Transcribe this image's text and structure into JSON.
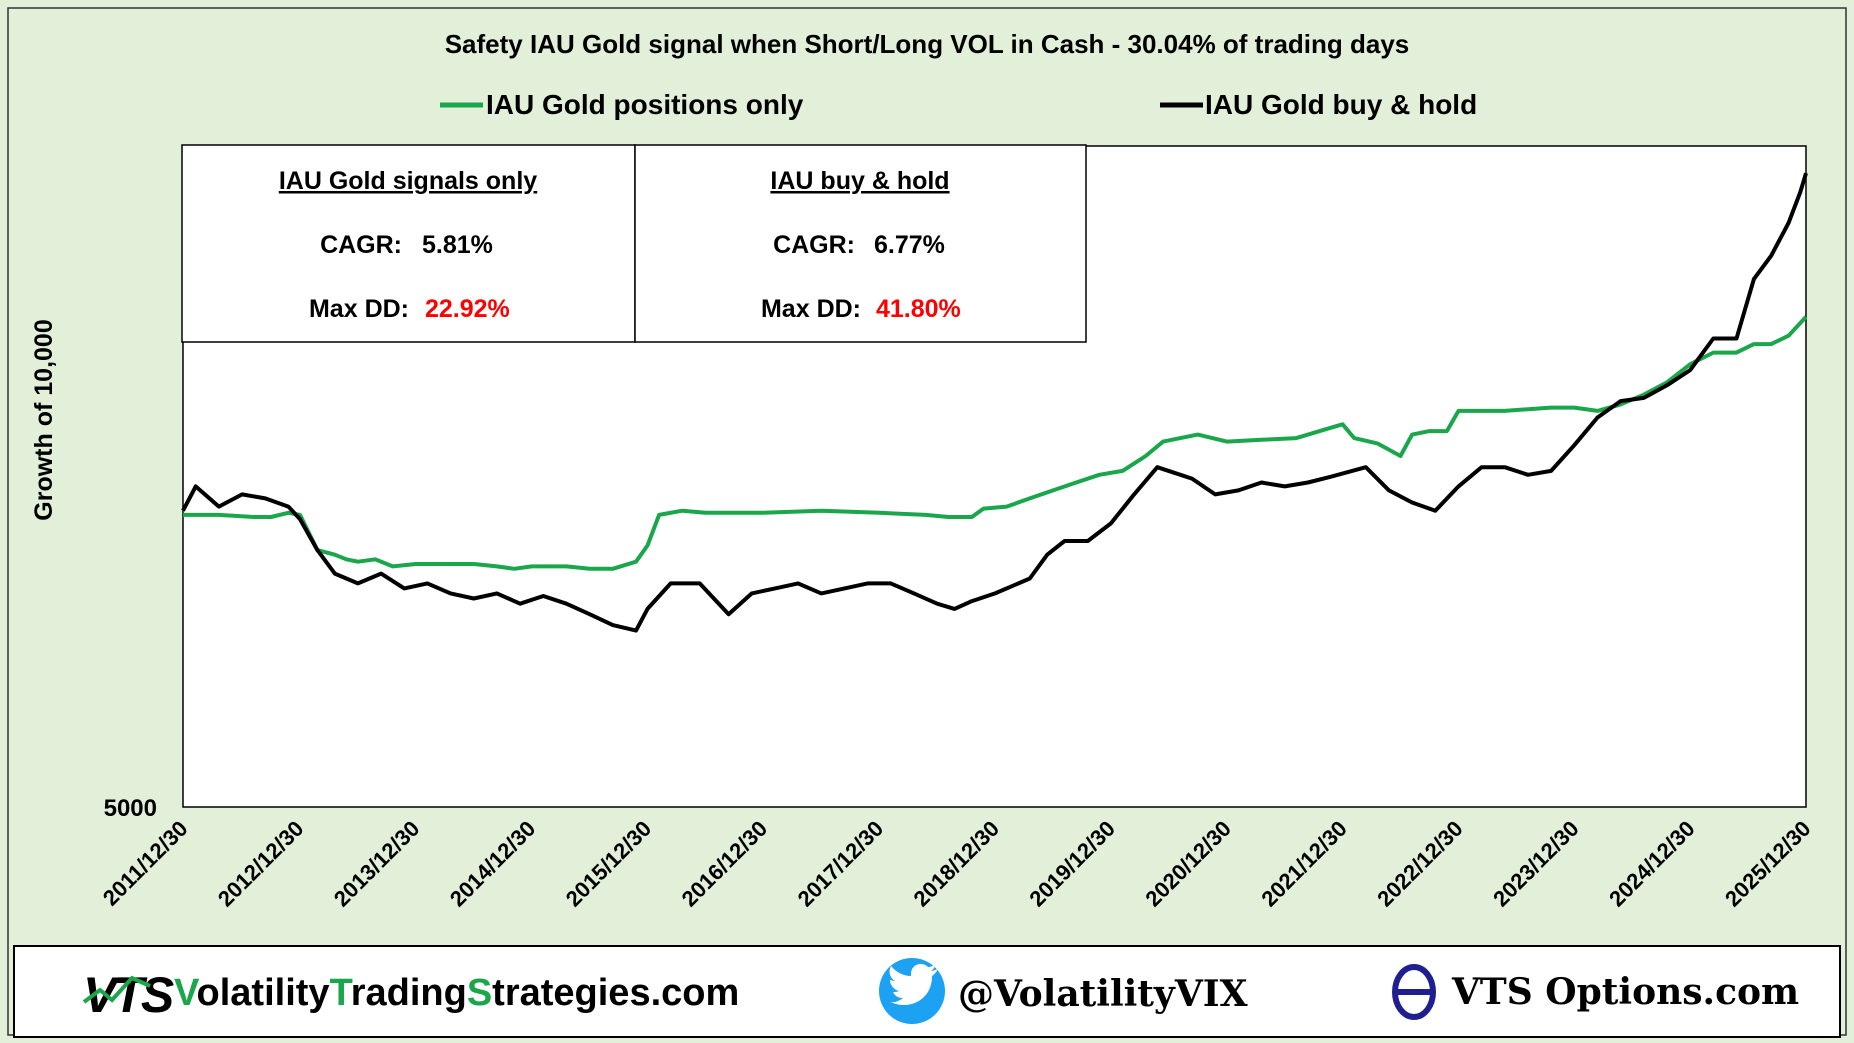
{
  "chart_data": {
    "type": "line",
    "title": "Safety IAU Gold signal when Short/Long VOL in Cash  -  30.04% of trading days",
    "xlabel": "",
    "ylabel": "Growth of 10,000",
    "y_scale": "log",
    "y_tick_labels": [
      "5000"
    ],
    "x_tick_labels": [
      "2011/12/30",
      "2012/12/30",
      "2013/12/30",
      "2014/12/30",
      "2015/12/30",
      "2016/12/30",
      "2017/12/30",
      "2018/12/30",
      "2019/12/30",
      "2020/12/30",
      "2021/12/30",
      "2022/12/30",
      "2023/12/30",
      "2024/12/30",
      "2025/12/30"
    ],
    "legend": [
      "IAU Gold positions only",
      "IAU Gold buy & hold"
    ],
    "colors": {
      "positions": "#1aa64b",
      "buyhold": "#000000",
      "background": "#e2efd9",
      "red": "#ff0000"
    },
    "series": [
      {
        "name": "IAU Gold positions only",
        "x": [
          2011.99,
          2012.3,
          2012.6,
          2012.75,
          2012.9,
          2013.0,
          2013.15,
          2013.3,
          2013.4,
          2013.5,
          2013.65,
          2013.8,
          2014.0,
          2014.2,
          2014.5,
          2014.7,
          2014.85,
          2015.0,
          2015.3,
          2015.5,
          2015.7,
          2015.9,
          2016.0,
          2016.1,
          2016.3,
          2016.5,
          2017.0,
          2017.5,
          2018.0,
          2018.4,
          2018.6,
          2018.8,
          2018.9,
          2019.1,
          2019.3,
          2019.5,
          2019.7,
          2019.9,
          2020.1,
          2020.3,
          2020.45,
          2020.6,
          2020.75,
          2021.0,
          2021.3,
          2021.6,
          2021.9,
          2022.0,
          2022.1,
          2022.3,
          2022.5,
          2022.6,
          2022.75,
          2022.9,
          2023.0,
          2023.2,
          2023.4,
          2023.6,
          2023.8,
          2024.0,
          2024.2,
          2024.4,
          2024.6,
          2024.8,
          2025.0,
          2025.2,
          2025.4,
          2025.55,
          2025.7,
          2025.85,
          2026.0
        ],
        "y": [
          10000,
          10000,
          9950,
          9950,
          10050,
          10000,
          9200,
          9100,
          9000,
          8950,
          9000,
          8850,
          8900,
          8900,
          8900,
          8850,
          8800,
          8850,
          8850,
          8800,
          8800,
          8950,
          9300,
          10000,
          10100,
          10050,
          10050,
          10100,
          10050,
          10000,
          9950,
          9950,
          10150,
          10200,
          10400,
          10600,
          10800,
          11000,
          11100,
          11500,
          11900,
          12000,
          12100,
          11900,
          11950,
          12000,
          12300,
          12400,
          12000,
          11850,
          11500,
          12100,
          12200,
          12200,
          12800,
          12800,
          12800,
          12850,
          12900,
          12900,
          12800,
          13000,
          13300,
          13700,
          14300,
          14700,
          14700,
          15000,
          15000,
          15300,
          16000
        ]
      },
      {
        "name": "IAU Gold buy & hold",
        "x": [
          2011.99,
          2012.1,
          2012.3,
          2012.5,
          2012.7,
          2012.9,
          2013.0,
          2013.15,
          2013.3,
          2013.5,
          2013.7,
          2013.9,
          2014.1,
          2014.3,
          2014.5,
          2014.7,
          2014.9,
          2015.1,
          2015.3,
          2015.5,
          2015.7,
          2015.9,
          2016.0,
          2016.2,
          2016.45,
          2016.7,
          2016.9,
          2017.1,
          2017.3,
          2017.5,
          2017.7,
          2017.9,
          2018.1,
          2018.3,
          2018.5,
          2018.65,
          2018.8,
          2019.0,
          2019.3,
          2019.45,
          2019.6,
          2019.8,
          2020.0,
          2020.2,
          2020.4,
          2020.6,
          2020.7,
          2020.9,
          2021.1,
          2021.3,
          2021.5,
          2021.7,
          2021.9,
          2022.2,
          2022.4,
          2022.6,
          2022.8,
          2023.0,
          2023.2,
          2023.4,
          2023.6,
          2023.8,
          2024.0,
          2024.2,
          2024.4,
          2024.6,
          2024.8,
          2025.0,
          2025.2,
          2025.4,
          2025.55,
          2025.7,
          2025.85,
          2025.95,
          2026.0
        ],
        "y": [
          10100,
          10700,
          10200,
          10500,
          10400,
          10200,
          9900,
          9200,
          8700,
          8500,
          8700,
          8400,
          8500,
          8300,
          8200,
          8300,
          8100,
          8250,
          8100,
          7900,
          7700,
          7600,
          8000,
          8500,
          8500,
          7900,
          8300,
          8400,
          8500,
          8300,
          8400,
          8500,
          8500,
          8300,
          8100,
          8000,
          8150,
          8300,
          8600,
          9100,
          9400,
          9400,
          9800,
          10500,
          11200,
          11000,
          10900,
          10500,
          10600,
          10800,
          10700,
          10800,
          10950,
          11200,
          10600,
          10300,
          10100,
          10700,
          11200,
          11200,
          11000,
          11100,
          11800,
          12600,
          13100,
          13200,
          13600,
          14100,
          15200,
          15200,
          17500,
          18500,
          20000,
          21500,
          22500
        ]
      }
    ],
    "stats": {
      "signals": {
        "header": "IAU Gold signals only",
        "cagr_label": "CAGR:",
        "cagr": "5.81%",
        "dd_label": "Max DD:",
        "dd": "22.92%"
      },
      "buyhold": {
        "header": "IAU buy & hold",
        "cagr_label": "CAGR:",
        "cagr": "6.77%",
        "dd_label": "Max DD:",
        "dd": "41.80%"
      }
    }
  },
  "footer": {
    "logo_text": "VTS",
    "site": {
      "w1": "Volatility",
      "w2": "Trading",
      "w3": "Strategies",
      "tail": ".com"
    },
    "twitter_handle": "@VolatilityVIX",
    "options_site": "VTS Options.com"
  }
}
